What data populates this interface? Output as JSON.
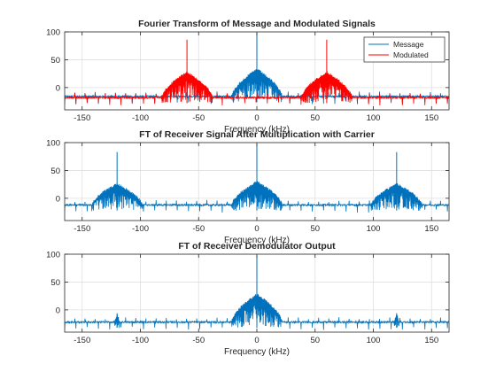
{
  "chart_data": [
    {
      "type": "line",
      "title": "Fourier Transform of Message and Modulated Signals",
      "xlabel": "Frequency (kHz)",
      "ylabel": "",
      "xlim": [
        -165,
        165
      ],
      "ylim": [
        -40,
        100
      ],
      "xticks": [
        -150,
        -100,
        -50,
        0,
        50,
        100,
        150
      ],
      "yticks": [
        0,
        50,
        100
      ],
      "grid": true,
      "legend": {
        "position": "top-right",
        "entries": [
          "Message",
          "Modulated"
        ]
      },
      "series": [
        {
          "name": "Message",
          "color": "#0072BD",
          "floor": -16,
          "peaks": [
            {
              "center": 0,
              "width": 22,
              "height": 35,
              "spike": 98
            }
          ]
        },
        {
          "name": "Modulated",
          "color": "#FF0000",
          "floor": -18,
          "peaks": [
            {
              "center": -60,
              "width": 22,
              "height": 30,
              "spike": 86
            },
            {
              "center": 60,
              "width": 22,
              "height": 30,
              "spike": 86
            }
          ]
        }
      ]
    },
    {
      "type": "line",
      "title": "FT of Receiver Signal After Multiplication with Carrier",
      "xlabel": "Frequency (kHz)",
      "ylabel": "",
      "xlim": [
        -165,
        165
      ],
      "ylim": [
        -40,
        100
      ],
      "xticks": [
        -150,
        -100,
        -50,
        0,
        50,
        100,
        150
      ],
      "yticks": [
        0,
        50,
        100
      ],
      "grid": true,
      "series": [
        {
          "color": "#0072BD",
          "floor": -12,
          "peaks": [
            {
              "center": -120,
              "width": 22,
              "height": 28,
              "spike": 83
            },
            {
              "center": 0,
              "width": 22,
              "height": 32,
              "spike": 97
            },
            {
              "center": 120,
              "width": 22,
              "height": 28,
              "spike": 83
            }
          ]
        }
      ]
    },
    {
      "type": "line",
      "title": "FT of Receiver Demodulator Output",
      "xlabel": "Frequency (kHz)",
      "ylabel": "",
      "xlim": [
        -165,
        165
      ],
      "ylim": [
        -40,
        100
      ],
      "xticks": [
        -150,
        -100,
        -50,
        0,
        50,
        100,
        150
      ],
      "yticks": [
        0,
        50,
        100
      ],
      "grid": true,
      "series": [
        {
          "color": "#0072BD",
          "floor": -22,
          "peaks": [
            {
              "center": -120,
              "width": 2,
              "height": -6,
              "spike": -6
            },
            {
              "center": 0,
              "width": 22,
              "height": 30,
              "spike": 97
            },
            {
              "center": 120,
              "width": 2,
              "height": -6,
              "spike": -6
            }
          ]
        }
      ]
    }
  ]
}
